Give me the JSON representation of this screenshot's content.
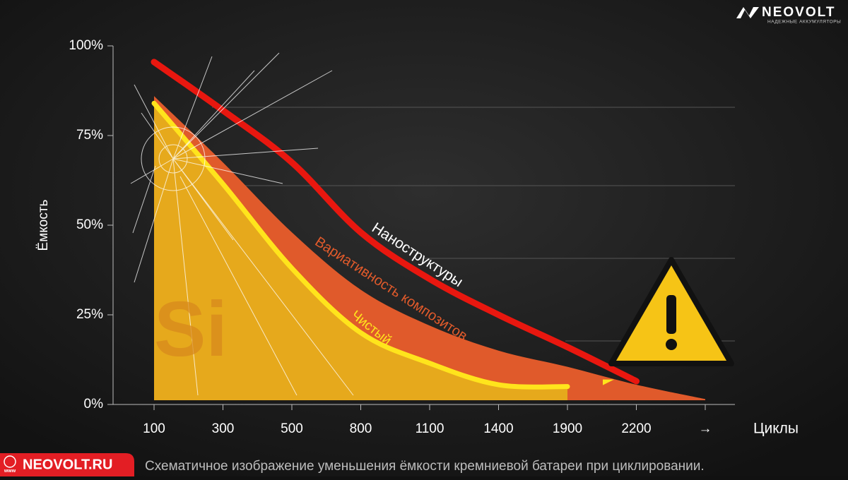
{
  "brand": {
    "name": "NEOVOLT",
    "tagline": "НАДЕЖНЫЕ АККУМУЛЯТОРЫ"
  },
  "footer": {
    "www": "www",
    "site": "NEOVOLT.RU"
  },
  "chart_data": {
    "type": "line",
    "caption": "Схематичное изображение уменьшения ёмкости кремниевой батареи при циклировании.",
    "y_label": "Ёмкость",
    "x_label": "Циклы",
    "annotation": "Si",
    "categories": [
      "100",
      "300",
      "500",
      "800",
      "1100",
      "1400",
      "1900",
      "2200",
      "→"
    ],
    "ylim": [
      0,
      100
    ],
    "yticks": [
      {
        "value": 0,
        "label": "0%"
      },
      {
        "value": 25,
        "label": "25%"
      },
      {
        "value": 50,
        "label": "50%"
      },
      {
        "value": 75,
        "label": "75%"
      },
      {
        "value": 100,
        "label": "100%"
      }
    ],
    "series": [
      {
        "name": "Вариативность композитов",
        "color": "#e05a2b",
        "area": true,
        "values": [
          86,
          67.5,
          48,
          32,
          22,
          15,
          10.5,
          5.5,
          1.5
        ]
      },
      {
        "name": "Чистый",
        "color": "#ffe41c",
        "area": true,
        "fill_color": "#e6a91c",
        "values": [
          84,
          61.5,
          38,
          20,
          11.5,
          5.5,
          5,
          null,
          null
        ]
      },
      {
        "name": "Наноструктуры",
        "color": "#e8170f",
        "area": false,
        "values": [
          95.5,
          82,
          67.5,
          48,
          35,
          25,
          16,
          6.5,
          null
        ]
      }
    ]
  }
}
